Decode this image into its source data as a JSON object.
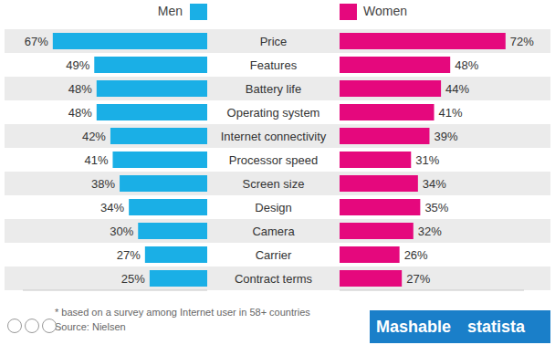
{
  "chart_data": {
    "type": "bar",
    "orientation": "horizontal",
    "categories": [
      "Price",
      "Features",
      "Battery life",
      "Operating system",
      "Internet connectivity",
      "Processor speed",
      "Screen size",
      "Design",
      "Camera",
      "Carrier",
      "Contract terms"
    ],
    "series": [
      {
        "name": "Men",
        "color": "#1aafe6",
        "values": [
          67,
          49,
          48,
          48,
          42,
          41,
          38,
          34,
          30,
          27,
          25
        ],
        "value_labels": [
          "67%",
          "49%",
          "48%",
          "48%",
          "42%",
          "41%",
          "38%",
          "34%",
          "30%",
          "27%",
          "25%"
        ]
      },
      {
        "name": "Women",
        "color": "#e5087d",
        "values": [
          72,
          48,
          44,
          41,
          39,
          31,
          34,
          35,
          32,
          26,
          27
        ],
        "value_labels": [
          "72%",
          "48%",
          "44%",
          "41%",
          "39%",
          "31%",
          "34%",
          "35%",
          "32%",
          "26%",
          "27%"
        ]
      }
    ],
    "xlim": [
      0,
      80
    ],
    "data_labels": true,
    "tick_labels": "y",
    "grid": false,
    "legend": "top",
    "note": "* based on a survey among Internet user in 58+ countries",
    "source": "Source: Nielsen",
    "credits": [
      "Mashable",
      "statista"
    ]
  }
}
